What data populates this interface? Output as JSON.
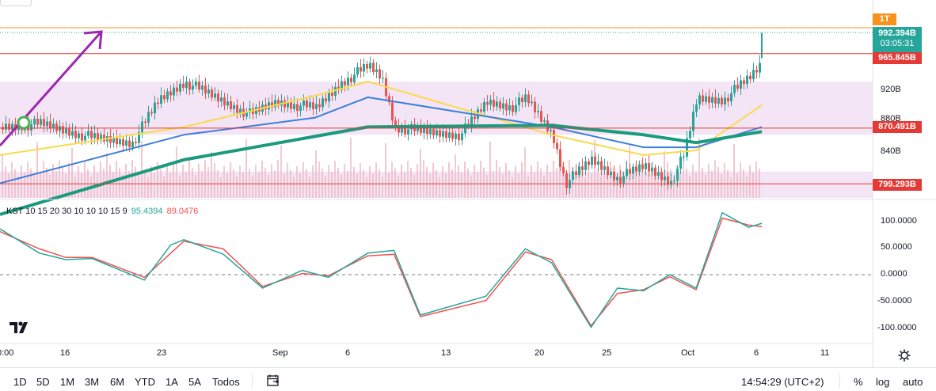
{
  "chart_data": [
    {
      "type": "candlestick",
      "x_ticks": [
        "0:00",
        "16",
        "23",
        "Sep",
        "6",
        "13",
        "20",
        "25",
        "Oct",
        "6",
        "11"
      ],
      "y_ticks": [
        "920B",
        "880B",
        "840B"
      ],
      "candles_approx": [
        {
          "x": "Aug 9",
          "close": 872
        },
        {
          "x": "Aug 12",
          "close": 876
        },
        {
          "x": "Aug 16",
          "close": 858
        },
        {
          "x": "Aug 19",
          "close": 852
        },
        {
          "x": "Aug 21",
          "close": 906
        },
        {
          "x": "Aug 23",
          "close": 930
        },
        {
          "x": "Aug 26",
          "close": 904
        },
        {
          "x": "Aug 28",
          "close": 888
        },
        {
          "x": "Aug 30",
          "close": 904
        },
        {
          "x": "Sep 2",
          "close": 896
        },
        {
          "x": "Sep 4",
          "close": 930
        },
        {
          "x": "Sep 6",
          "close": 950
        },
        {
          "x": "Sep 7",
          "close": 935
        },
        {
          "x": "Sep 8",
          "close": 872
        },
        {
          "x": "Sep 10",
          "close": 866
        },
        {
          "x": "Sep 13",
          "close": 862
        },
        {
          "x": "Sep 15",
          "close": 904
        },
        {
          "x": "Sep 17",
          "close": 898
        },
        {
          "x": "Sep 18",
          "close": 908
        },
        {
          "x": "Sep 20",
          "close": 862
        },
        {
          "x": "Sep 21",
          "close": 800
        },
        {
          "x": "Sep 23",
          "close": 830
        },
        {
          "x": "Sep 25",
          "close": 806
        },
        {
          "x": "Sep 27",
          "close": 822
        },
        {
          "x": "Sep 29",
          "close": 802
        },
        {
          "x": "Sep 30",
          "close": 836
        },
        {
          "x": "Oct 1",
          "close": 908
        },
        {
          "x": "Oct 3",
          "close": 907
        },
        {
          "x": "Oct 5",
          "close": 935
        },
        {
          "x": "Oct 6",
          "close": 955
        },
        {
          "x": "Oct 6 (last)",
          "close": 992.394
        }
      ],
      "moving_averages": [
        {
          "name": "MA yellow",
          "color": "#fbd94a",
          "values": [
            {
              "x": "Aug 9",
              "y": 836
            },
            {
              "x": "Aug 23",
              "y": 872
            },
            {
              "x": "Sep 2",
              "y": 912
            },
            {
              "x": "Sep 6",
              "y": 930
            },
            {
              "x": "Sep 20",
              "y": 862
            },
            {
              "x": "Sep 27",
              "y": 836
            },
            {
              "x": "Oct 1",
              "y": 842
            },
            {
              "x": "Oct 6",
              "y": 900
            }
          ]
        },
        {
          "name": "MA blue",
          "color": "#3d7fd9",
          "values": [
            {
              "x": "Aug 9",
              "y": 800
            },
            {
              "x": "Aug 23",
              "y": 862
            },
            {
              "x": "Sep 2",
              "y": 884
            },
            {
              "x": "Sep 6",
              "y": 910
            },
            {
              "x": "Sep 20",
              "y": 872
            },
            {
              "x": "Sep 27",
              "y": 846
            },
            {
              "x": "Oct 1",
              "y": 846
            },
            {
              "x": "Oct 6",
              "y": 872
            }
          ]
        },
        {
          "name": "MA green",
          "color": "#1a9a7e",
          "values": [
            {
              "x": "Aug 9",
              "y": 760
            },
            {
              "x": "Aug 23",
              "y": 830
            },
            {
              "x": "Sep 6",
              "y": 872
            },
            {
              "x": "Sep 20",
              "y": 874
            },
            {
              "x": "Sep 27",
              "y": 862
            },
            {
              "x": "Oct 1",
              "y": 852
            },
            {
              "x": "Oct 6",
              "y": 866
            }
          ]
        }
      ],
      "horizontal_levels": [
        {
          "value": 965.845,
          "label": "965.845B",
          "color": "#e53935"
        },
        {
          "value": 870.491,
          "label": "870.491B",
          "color": "#e53935"
        },
        {
          "value": 799.293,
          "label": "799.293B",
          "color": "#e53935"
        }
      ],
      "price_badges": [
        {
          "label": "1T",
          "color": "#f7931a"
        },
        {
          "label": "992.394B",
          "sublabel": "03:05:31",
          "color": "#26a69a"
        },
        {
          "label": "965.845B",
          "color": "#e53935"
        },
        {
          "label": "870.491B",
          "color": "#e53935"
        },
        {
          "label": "799.293B",
          "color": "#e53935"
        }
      ],
      "shaded_zones": [
        {
          "from": 862,
          "to": 930,
          "color": "#f3e5f5"
        },
        {
          "from": 778,
          "to": 815,
          "color": "#f3e5f5"
        }
      ],
      "grid": false
    },
    {
      "type": "line",
      "title": "KST 10 15 20 30 10 10 10 15 9",
      "y_ticks": [
        "100.0000",
        "50.0000",
        "0.0000",
        "-50.0000",
        "-100.0000"
      ],
      "ylim": [
        -110,
        120
      ],
      "series": [
        {
          "name": "KST",
          "color": "#26a69a",
          "last_value": "95.4394",
          "values": [
            {
              "x": "Aug 9",
              "y": 85
            },
            {
              "x": "Aug 12",
              "y": 40
            },
            {
              "x": "Aug 14",
              "y": 28
            },
            {
              "x": "Aug 16",
              "y": 30
            },
            {
              "x": "Aug 20",
              "y": -10
            },
            {
              "x": "Aug 22",
              "y": 55
            },
            {
              "x": "Aug 23",
              "y": 65
            },
            {
              "x": "Aug 26",
              "y": 38
            },
            {
              "x": "Aug 29",
              "y": -25
            },
            {
              "x": "Sep 1",
              "y": 8
            },
            {
              "x": "Sep 3",
              "y": -5
            },
            {
              "x": "Sep 6",
              "y": 40
            },
            {
              "x": "Sep 8",
              "y": 45
            },
            {
              "x": "Sep 10",
              "y": -75
            },
            {
              "x": "Sep 15",
              "y": -40
            },
            {
              "x": "Sep 18",
              "y": 48
            },
            {
              "x": "Sep 20",
              "y": 22
            },
            {
              "x": "Sep 23",
              "y": -98
            },
            {
              "x": "Sep 25",
              "y": -25
            },
            {
              "x": "Sep 27",
              "y": -30
            },
            {
              "x": "Sep 29",
              "y": 0
            },
            {
              "x": "Oct 1",
              "y": -25
            },
            {
              "x": "Oct 3",
              "y": 115
            },
            {
              "x": "Oct 5",
              "y": 88
            },
            {
              "x": "Oct 6",
              "y": 95.4394
            }
          ]
        },
        {
          "name": "Signal",
          "color": "#ef5350",
          "last_value": "89.0476",
          "values": [
            {
              "x": "Aug 9",
              "y": 80
            },
            {
              "x": "Aug 12",
              "y": 48
            },
            {
              "x": "Aug 14",
              "y": 32
            },
            {
              "x": "Aug 16",
              "y": 32
            },
            {
              "x": "Aug 20",
              "y": -5
            },
            {
              "x": "Aug 22",
              "y": 40
            },
            {
              "x": "Aug 23",
              "y": 62
            },
            {
              "x": "Aug 26",
              "y": 48
            },
            {
              "x": "Aug 29",
              "y": -22
            },
            {
              "x": "Sep 1",
              "y": 2
            },
            {
              "x": "Sep 3",
              "y": -2
            },
            {
              "x": "Sep 6",
              "y": 35
            },
            {
              "x": "Sep 8",
              "y": 38
            },
            {
              "x": "Sep 10",
              "y": -78
            },
            {
              "x": "Sep 15",
              "y": -48
            },
            {
              "x": "Sep 18",
              "y": 42
            },
            {
              "x": "Sep 20",
              "y": 28
            },
            {
              "x": "Sep 23",
              "y": -95
            },
            {
              "x": "Sep 25",
              "y": -35
            },
            {
              "x": "Sep 27",
              "y": -28
            },
            {
              "x": "Sep 29",
              "y": -4
            },
            {
              "x": "Oct 1",
              "y": -28
            },
            {
              "x": "Oct 3",
              "y": 105
            },
            {
              "x": "Oct 5",
              "y": 92
            },
            {
              "x": "Oct 6",
              "y": 89.0476
            }
          ]
        }
      ],
      "reference_line": 0
    }
  ],
  "indicator_label": "KST 10 15 20 30 10 10 10 15 9",
  "kst_value": "95.4394",
  "signal_value": "89.0476",
  "timeframes": [
    "1D",
    "5D",
    "1M",
    "3M",
    "6M",
    "YTD",
    "1A",
    "5A",
    "Todos"
  ],
  "time_display": "14:54:29 (UTC+2)",
  "percent_label": "%",
  "log_label": "log",
  "auto_label": "auto",
  "icons": {
    "logo": "tradingview-logo-icon",
    "compare": "compare-date-icon",
    "settings": "gear-icon"
  }
}
